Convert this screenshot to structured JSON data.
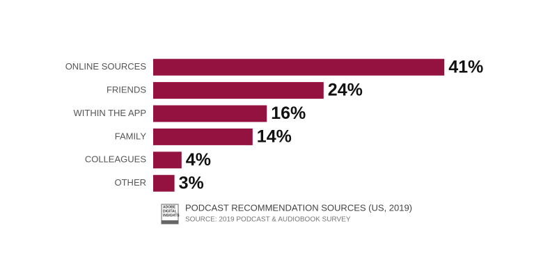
{
  "chart_data": {
    "type": "bar",
    "orientation": "horizontal",
    "title": "PODCAST RECOMMENDATION SOURCES (US, 2019)",
    "subtitle": "SOURCE: 2019 PODCAST & AUDIOBOOK SURVEY",
    "logo": [
      "ADOBE",
      "DIGITAL",
      "INSIGHTS"
    ],
    "categories": [
      "ONLINE SOURCES",
      "FRIENDS",
      "WITHIN THE APP",
      "FAMILY",
      "COLLEAGUES",
      "OTHER"
    ],
    "values": [
      41,
      24,
      16,
      14,
      4,
      3
    ],
    "value_labels": [
      "41%",
      "24%",
      "16%",
      "14%",
      "4%",
      "3%"
    ],
    "color": "#931240"
  }
}
